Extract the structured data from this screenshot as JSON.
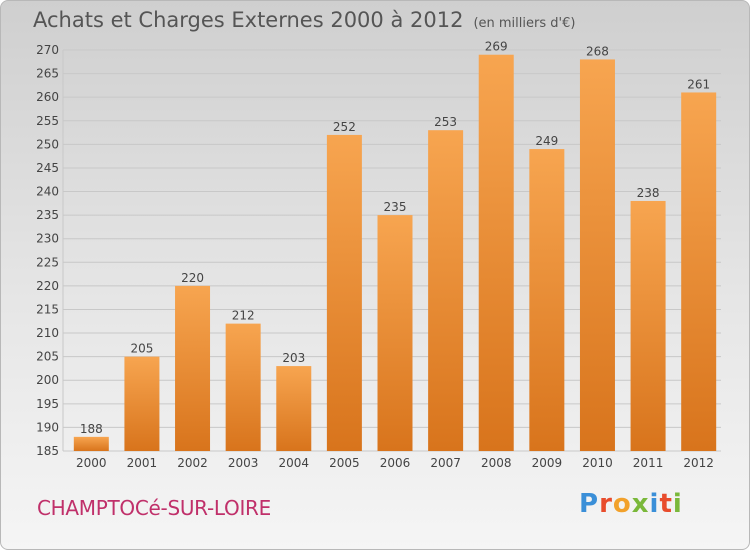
{
  "header": {
    "title": "Achats et Charges Externes 2000 à 2012",
    "subtitle": "(en milliers d'€)"
  },
  "footer": {
    "town": "CHAMPTOCé-SUR-LOIRE",
    "logo": "Proxiti"
  },
  "colors": {
    "bar_light": "#f7a550",
    "bar_dark": "#d8741c",
    "grid": "#c8c8c8",
    "axis_text": "#444444",
    "town_text": "#c0306a"
  },
  "chart_data": {
    "type": "bar",
    "title": "Achats et Charges Externes 2000 à 2012",
    "subtitle": "(en milliers d'€)",
    "categories": [
      "2000",
      "2001",
      "2002",
      "2003",
      "2004",
      "2005",
      "2006",
      "2007",
      "2008",
      "2009",
      "2010",
      "2011",
      "2012"
    ],
    "values": [
      188,
      205,
      220,
      212,
      203,
      252,
      235,
      253,
      269,
      249,
      268,
      238,
      261
    ],
    "ylim": [
      185,
      270
    ],
    "yticks": [
      185,
      190,
      195,
      200,
      205,
      210,
      215,
      220,
      225,
      230,
      235,
      240,
      245,
      250,
      255,
      260,
      265,
      270
    ],
    "grid": true,
    "data_labels": true
  }
}
